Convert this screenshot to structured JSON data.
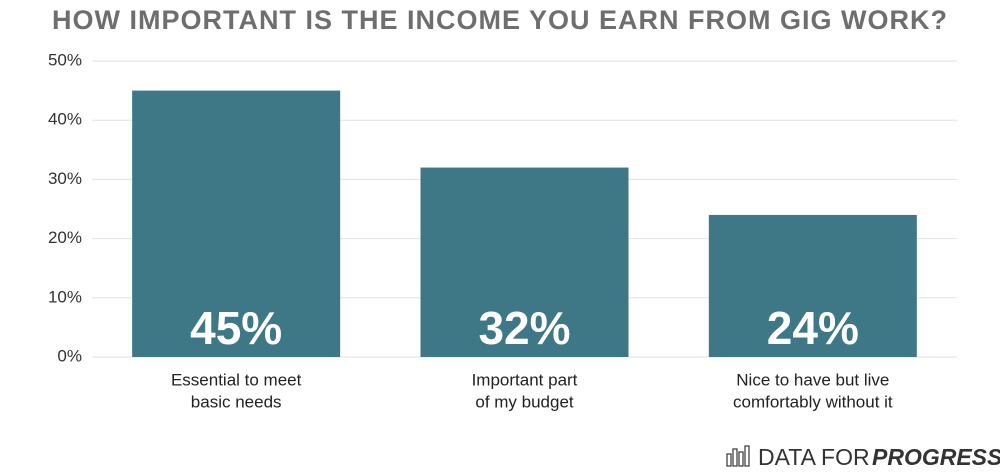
{
  "chart_data": {
    "type": "bar",
    "title": "HOW IMPORTANT IS THE INCOME YOU EARN FROM GIG WORK?",
    "categories": [
      [
        "Essential to meet",
        "basic needs"
      ],
      [
        "Important part",
        "of my budget"
      ],
      [
        "Nice to have but live",
        "comfortably without it"
      ]
    ],
    "values": [
      45,
      32,
      24
    ],
    "value_labels": [
      "45%",
      "32%",
      "24%"
    ],
    "color": "#3e7887",
    "ylim": [
      0,
      50
    ],
    "yticks": [
      {
        "value": 0,
        "label": "0%"
      },
      {
        "value": 10,
        "label": "10%"
      },
      {
        "value": 20,
        "label": "20%"
      },
      {
        "value": 30,
        "label": "30%"
      },
      {
        "value": 40,
        "label": "40%"
      },
      {
        "value": 50,
        "label": "50%"
      }
    ],
    "grid": true,
    "source": {
      "prefix": "DATA FOR",
      "name": "PROGRESS"
    }
  }
}
